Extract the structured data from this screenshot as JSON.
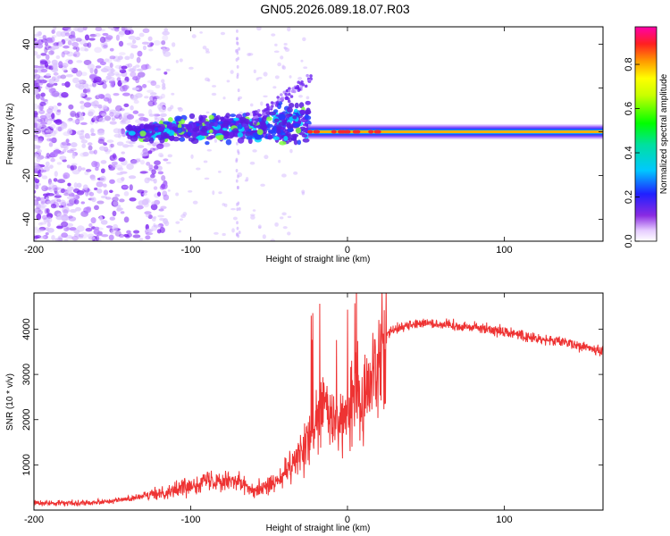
{
  "title": "GN05.2026.089.18.07.R03",
  "chart_data": [
    {
      "type": "heatmap",
      "xlabel": "Height of straight line (km)",
      "ylabel": "Frequency (Hz)",
      "xlim": [
        -200,
        163
      ],
      "ylim": [
        -50,
        48
      ],
      "x_ticks": [
        -200,
        -100,
        0,
        100
      ],
      "y_ticks": [
        -40,
        -20,
        0,
        20,
        40
      ],
      "colorbar": {
        "label": "Normalized spectral amplitude",
        "range": [
          0.0,
          0.97
        ],
        "ticks": [
          0.0,
          0.2,
          0.4,
          0.6,
          0.8
        ]
      },
      "structure": {
        "carrier_line_freq_hz": 0,
        "carrier_line_start_km": -25,
        "carrier_line_peak_amplitude": 0.95,
        "scatter_region_km": [
          -200,
          -130
        ],
        "spread_band_km": [
          -140,
          -25
        ]
      }
    },
    {
      "type": "line",
      "xlabel": "Height of straight line (km)",
      "ylabel": "SNR (10 * v/v)",
      "xlim": [
        -200,
        163
      ],
      "ylim": [
        0,
        4800
      ],
      "x_ticks": [
        -200,
        -100,
        0,
        100
      ],
      "y_ticks": [
        1000,
        2000,
        3000,
        4000
      ],
      "color": "#ee3333",
      "envelope": {
        "x": [
          -200,
          -170,
          -150,
          -130,
          -110,
          -90,
          -75,
          -60,
          -45,
          -35,
          -25,
          -15,
          -10,
          -5,
          0,
          5,
          10,
          15,
          20,
          25,
          30,
          40,
          50,
          60,
          80,
          100,
          120,
          140,
          163
        ],
        "y": [
          150,
          160,
          200,
          300,
          450,
          650,
          700,
          450,
          600,
          1000,
          1500,
          2300,
          2000,
          1800,
          2100,
          2700,
          2300,
          2800,
          3600,
          3900,
          4000,
          4100,
          4150,
          4100,
          4050,
          3950,
          3800,
          3700,
          3500
        ]
      }
    }
  ]
}
